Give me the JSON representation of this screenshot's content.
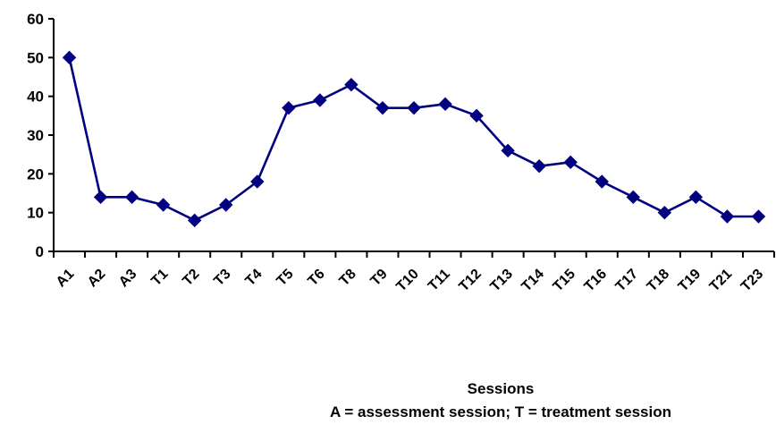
{
  "chart_data": {
    "type": "line",
    "title": "",
    "xlabel": "Sessions",
    "xlabel_note": "A = assessment session;  T = treatment session",
    "ylabel": "",
    "ylim": [
      0,
      60
    ],
    "yticks": [
      0,
      10,
      20,
      30,
      40,
      50,
      60
    ],
    "grid": false,
    "legend": "none",
    "series_color": "#000080",
    "categories": [
      "A1",
      "A2",
      "A3",
      "T1",
      "T2",
      "T3",
      "T4",
      "T5",
      "T6",
      "T8",
      "T9",
      "T10",
      "T11",
      "T12",
      "T13",
      "T14",
      "T15",
      "T16",
      "T17",
      "T18",
      "T19",
      "T21",
      "T23"
    ],
    "series": [
      {
        "values": [
          50,
          14,
          14,
          12,
          8,
          12,
          18,
          37,
          39,
          43,
          37,
          37,
          38,
          35,
          26,
          22,
          23,
          18,
          14,
          10,
          14,
          9,
          9
        ]
      }
    ]
  }
}
